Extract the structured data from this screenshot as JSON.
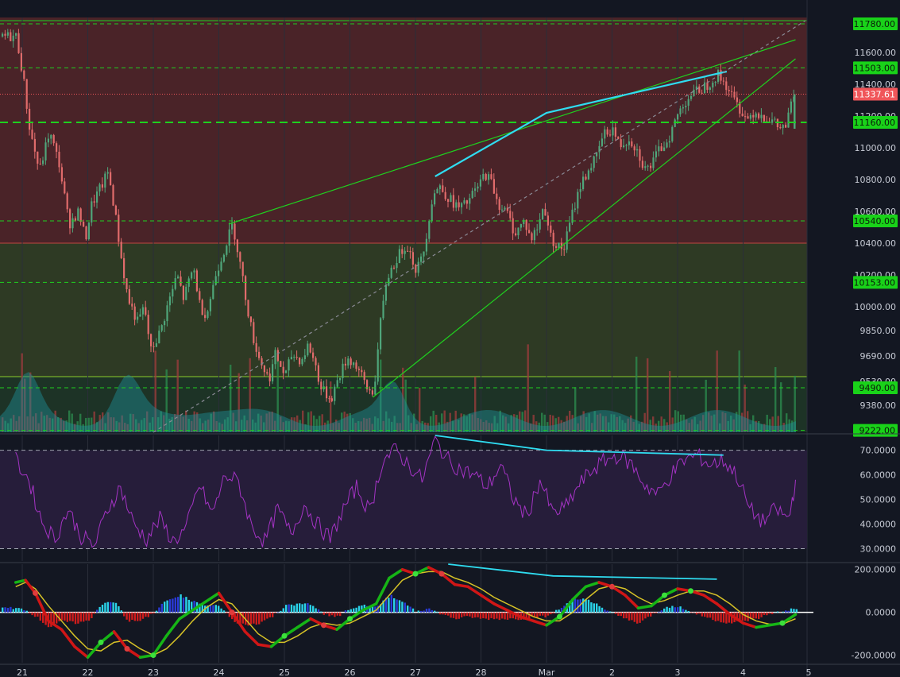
{
  "chart_data": [
    {
      "type": "candlestick",
      "panel": "price",
      "ylim": [
        9210,
        11820
      ],
      "y_ticks": [
        "11600.00",
        "11400.00",
        "11200.00",
        "11000.00",
        "10800.00",
        "10600.00",
        "10400.00",
        "10200.00",
        "10000.00",
        "9850.00",
        "9690.00",
        "9530.00",
        "9380.00"
      ],
      "y_tick_values": [
        11600,
        11400,
        11200,
        11000,
        10800,
        10600,
        10400,
        10200,
        10000,
        9850,
        9690,
        9530,
        9380
      ],
      "price_badges": [
        {
          "label": "11780.00",
          "value": 11780,
          "color": "#19d219"
        },
        {
          "label": "11503.00",
          "value": 11503,
          "color": "#19d219"
        },
        {
          "label": "11337.61",
          "value": 11337.61,
          "color": "#f0565a"
        },
        {
          "label": "11160.00",
          "value": 11160,
          "color": "#19d219"
        },
        {
          "label": "10540.00",
          "value": 10540,
          "color": "#19d219"
        },
        {
          "label": "10153.00",
          "value": 10153,
          "color": "#19d219"
        },
        {
          "label": "9490.00",
          "value": 9490,
          "color": "#19d219"
        },
        {
          "label": "9222.00",
          "value": 9222,
          "color": "#19d219"
        }
      ],
      "zones": [
        {
          "from": 10400,
          "to": 11820,
          "color": "#4a2328"
        },
        {
          "from": 9560,
          "to": 10400,
          "color": "#2e3a24"
        },
        {
          "from": 9210,
          "to": 9560,
          "color": "#1d3326"
        }
      ],
      "close_path": [
        [
          20.9,
          11700
        ],
        [
          21.0,
          11450
        ],
        [
          21.1,
          11120
        ],
        [
          21.25,
          10850
        ],
        [
          21.4,
          11100
        ],
        [
          21.55,
          10900
        ],
        [
          21.7,
          10520
        ],
        [
          21.85,
          10600
        ],
        [
          21.95,
          10420
        ],
        [
          22.05,
          10650
        ],
        [
          22.2,
          10760
        ],
        [
          22.3,
          10850
        ],
        [
          22.4,
          10600
        ],
        [
          22.5,
          10300
        ],
        [
          22.6,
          10050
        ],
        [
          22.75,
          9900
        ],
        [
          22.85,
          10000
        ],
        [
          22.95,
          9720
        ],
        [
          23.1,
          9850
        ],
        [
          23.2,
          10000
        ],
        [
          23.35,
          10200
        ],
        [
          23.45,
          10050
        ],
        [
          23.6,
          10250
        ],
        [
          23.7,
          10000
        ],
        [
          23.8,
          9950
        ],
        [
          23.95,
          10220
        ],
        [
          24.1,
          10400
        ],
        [
          24.2,
          10520
        ],
        [
          24.3,
          10300
        ],
        [
          24.4,
          10050
        ],
        [
          24.5,
          9820
        ],
        [
          24.6,
          9680
        ],
        [
          24.75,
          9540
        ],
        [
          24.85,
          9700
        ],
        [
          25.0,
          9560
        ],
        [
          25.1,
          9700
        ],
        [
          25.25,
          9660
        ],
        [
          25.35,
          9760
        ],
        [
          25.45,
          9650
        ],
        [
          25.55,
          9480
        ],
        [
          25.7,
          9420
        ],
        [
          25.8,
          9540
        ],
        [
          25.95,
          9680
        ],
        [
          26.1,
          9620
        ],
        [
          26.25,
          9480
        ],
        [
          26.35,
          9460
        ],
        [
          26.45,
          9880
        ],
        [
          26.55,
          10180
        ],
        [
          26.7,
          10300
        ],
        [
          26.85,
          10400
        ],
        [
          27.0,
          10230
        ],
        [
          27.1,
          10320
        ],
        [
          27.25,
          10700
        ],
        [
          27.35,
          10760
        ],
        [
          27.5,
          10680
        ],
        [
          27.65,
          10620
        ],
        [
          27.75,
          10640
        ],
        [
          27.85,
          10700
        ],
        [
          27.95,
          10760
        ],
        [
          28.05,
          10840
        ],
        [
          28.15,
          10780
        ],
        [
          28.25,
          10650
        ],
        [
          28.4,
          10580
        ],
        [
          28.5,
          10460
        ],
        [
          28.65,
          10540
        ],
        [
          28.75,
          10420
        ],
        [
          28.85,
          10500
        ],
        [
          28.95,
          10640
        ],
        [
          29.05,
          10440
        ],
        [
          29.15,
          10380
        ],
        [
          29.25,
          10360
        ],
        [
          29.35,
          10540
        ],
        [
          29.5,
          10760
        ],
        [
          29.65,
          10880
        ],
        [
          29.75,
          10940
        ],
        [
          29.85,
          11080
        ],
        [
          30.0,
          11120
        ],
        [
          30.1,
          11010
        ],
        [
          30.25,
          11060
        ],
        [
          30.35,
          11000
        ],
        [
          30.5,
          10860
        ],
        [
          30.6,
          10900
        ],
        [
          30.7,
          10980
        ],
        [
          30.85,
          11060
        ],
        [
          31.0,
          11220
        ],
        [
          31.15,
          11320
        ],
        [
          31.3,
          11360
        ],
        [
          31.45,
          11400
        ],
        [
          31.6,
          11460
        ],
        [
          31.75,
          11380
        ],
        [
          31.85,
          11300
        ],
        [
          31.95,
          11240
        ],
        [
          32.05,
          11180
        ],
        [
          32.15,
          11230
        ],
        [
          32.3,
          11200
        ],
        [
          32.45,
          11160
        ],
        [
          32.55,
          11120
        ],
        [
          32.65,
          11140
        ],
        [
          32.75,
          11337.61
        ]
      ],
      "volume_profile_overlay": true,
      "trendlines": [
        {
          "name": "",
          "color": "#1fd01f",
          "points": [
            [
              24.15,
              10520
            ],
            [
              32.8,
              11680
            ]
          ]
        },
        {
          "name": "",
          "color": "#1fd01f",
          "points": [
            [
              26.35,
              9430
            ],
            [
              32.8,
              11560
            ]
          ]
        },
        {
          "name": "",
          "color": "#2fdcf0",
          "points": [
            [
              27.3,
              10820
            ],
            [
              29.0,
              11220
            ],
            [
              31.75,
              11480
            ]
          ]
        },
        {
          "name": "",
          "color": "#8a8a95",
          "dashed": true,
          "points": [
            [
              23.0,
              9210
            ],
            [
              32.95,
              11800
            ]
          ]
        }
      ],
      "horizontal_lines": [
        {
          "value": 11780,
          "style": "dashed",
          "color": "#1fd01f"
        },
        {
          "value": 11503,
          "style": "dashed",
          "color": "#1fd01f"
        },
        {
          "value": 11337.61,
          "style": "dotted",
          "color": "#f0565a"
        },
        {
          "value": 11160,
          "style": "dashed-thick",
          "color": "#1fd01f"
        },
        {
          "value": 10540,
          "style": "dashed",
          "color": "#1fd01f"
        },
        {
          "value": 10153,
          "style": "dashed",
          "color": "#1fd01f"
        },
        {
          "value": 9490,
          "style": "dashed",
          "color": "#1fd01f"
        },
        {
          "value": 9222,
          "style": "dashed",
          "color": "#1fd01f"
        }
      ]
    },
    {
      "type": "line",
      "panel": "rsi",
      "ylim": [
        25,
        76
      ],
      "y_ticks": [
        "70.0000",
        "60.0000",
        "50.0000",
        "40.0000",
        "30.0000"
      ],
      "y_tick_values": [
        70,
        60,
        50,
        40,
        30
      ],
      "band": [
        30,
        70
      ],
      "x": [
        20.9,
        21.1,
        21.3,
        21.5,
        21.7,
        21.9,
        22.1,
        22.3,
        22.5,
        22.7,
        22.9,
        23.1,
        23.3,
        23.5,
        23.7,
        23.9,
        24.1,
        24.3,
        24.5,
        24.7,
        24.9,
        25.1,
        25.3,
        25.5,
        25.7,
        25.9,
        26.1,
        26.3,
        26.5,
        26.7,
        26.9,
        27.1,
        27.3,
        27.5,
        27.7,
        27.9,
        28.1,
        28.3,
        28.5,
        28.7,
        28.9,
        29.1,
        29.3,
        29.5,
        29.7,
        29.9,
        30.1,
        30.3,
        30.5,
        30.7,
        30.9,
        31.1,
        31.3,
        31.5,
        31.7,
        31.9,
        32.1,
        32.3,
        32.5,
        32.7,
        32.8
      ],
      "values": [
        66,
        58,
        41,
        34,
        46,
        35,
        31,
        46,
        55,
        40,
        34,
        42,
        33,
        38,
        56,
        44,
        60,
        57,
        39,
        33,
        46,
        36,
        48,
        40,
        34,
        46,
        55,
        45,
        66,
        70,
        64,
        58,
        74,
        66,
        62,
        60,
        55,
        64,
        50,
        43,
        58,
        44,
        47,
        56,
        62,
        66,
        68,
        64,
        56,
        52,
        60,
        66,
        68,
        64,
        66,
        60,
        46,
        41,
        46,
        42,
        58
      ],
      "trendlines": [
        {
          "color": "#2fdcf0",
          "points": [
            [
              27.3,
              76
            ],
            [
              29.0,
              70
            ],
            [
              31.7,
              68
            ]
          ]
        }
      ]
    },
    {
      "type": "macd",
      "panel": "macd",
      "ylim": [
        -235,
        225
      ],
      "y_ticks": [
        "200.0000",
        "0.0000",
        "-200.0000"
      ],
      "y_tick_values": [
        200,
        0,
        -200
      ],
      "macd_x": [
        20.9,
        21.05,
        21.2,
        21.4,
        21.6,
        21.8,
        22.0,
        22.2,
        22.4,
        22.6,
        22.8,
        23.0,
        23.2,
        23.4,
        23.6,
        23.8,
        24.0,
        24.2,
        24.4,
        24.6,
        24.8,
        25.0,
        25.2,
        25.4,
        25.6,
        25.8,
        26.0,
        26.2,
        26.4,
        26.6,
        26.8,
        27.0,
        27.2,
        27.4,
        27.6,
        27.8,
        28.0,
        28.2,
        28.4,
        28.6,
        28.8,
        29.0,
        29.2,
        29.4,
        29.6,
        29.8,
        30.0,
        30.2,
        30.4,
        30.6,
        30.8,
        31.0,
        31.2,
        31.4,
        31.6,
        31.8,
        32.0,
        32.2,
        32.4,
        32.6,
        32.8
      ],
      "macd_values": [
        140,
        150,
        90,
        -40,
        -80,
        -160,
        -210,
        -140,
        -90,
        -170,
        -210,
        -200,
        -110,
        -30,
        10,
        50,
        90,
        0,
        -90,
        -150,
        -160,
        -110,
        -70,
        -30,
        -60,
        -80,
        -30,
        10,
        40,
        160,
        200,
        180,
        210,
        180,
        130,
        120,
        80,
        40,
        10,
        -20,
        -40,
        -60,
        -20,
        60,
        120,
        140,
        120,
        80,
        20,
        30,
        80,
        110,
        100,
        80,
        40,
        -10,
        -50,
        -70,
        -60,
        -50,
        -10
      ],
      "signal_values": [
        120,
        140,
        110,
        30,
        -40,
        -110,
        -170,
        -180,
        -140,
        -130,
        -170,
        -200,
        -170,
        -110,
        -40,
        20,
        60,
        40,
        -30,
        -100,
        -140,
        -140,
        -110,
        -70,
        -50,
        -60,
        -50,
        -20,
        10,
        80,
        150,
        180,
        190,
        190,
        160,
        140,
        110,
        70,
        40,
        10,
        -20,
        -40,
        -40,
        0,
        60,
        110,
        125,
        110,
        70,
        40,
        55,
        80,
        100,
        100,
        80,
        40,
        -10,
        -40,
        -55,
        -55,
        -30
      ],
      "histogram_values": [
        20,
        10,
        -20,
        -70,
        -40,
        -50,
        -40,
        40,
        50,
        -40,
        -40,
        0,
        60,
        80,
        50,
        30,
        30,
        -40,
        -60,
        -50,
        -20,
        30,
        40,
        40,
        -10,
        -20,
        20,
        30,
        30,
        80,
        50,
        0,
        20,
        -10,
        -30,
        -20,
        -30,
        -30,
        -30,
        -30,
        -20,
        -20,
        20,
        60,
        60,
        30,
        -5,
        -30,
        -50,
        -10,
        25,
        30,
        0,
        -20,
        -40,
        -50,
        -40,
        -30,
        -5,
        5,
        20
      ],
      "trendline": {
        "color": "#2fdcf0",
        "points": [
          [
            27.5,
            225
          ],
          [
            29.1,
            170
          ],
          [
            31.6,
            155
          ]
        ]
      }
    }
  ],
  "time_axis": {
    "labels": [
      "21",
      "22",
      "23",
      "24",
      "25",
      "26",
      "27",
      "28",
      "Mar",
      "2",
      "3",
      "4",
      "5"
    ],
    "positions": [
      21,
      22,
      23,
      24,
      25,
      26,
      27,
      28,
      29,
      30,
      31,
      32,
      33
    ]
  },
  "colors": {
    "background": "#131722",
    "up": "#4fa57a",
    "down": "#e06b6b",
    "green_line": "#1fd01f",
    "cyan_line": "#2fdcf0",
    "rsi_line": "#a433c4",
    "rsi_band": "#261d3a",
    "macd_line": "#16b516",
    "macd_line_down": "#d01616",
    "signal_line": "#d6c227",
    "hist_up": "#2ad2e8",
    "hist_down": "#d01c1c",
    "grid": "#2a2e39"
  }
}
